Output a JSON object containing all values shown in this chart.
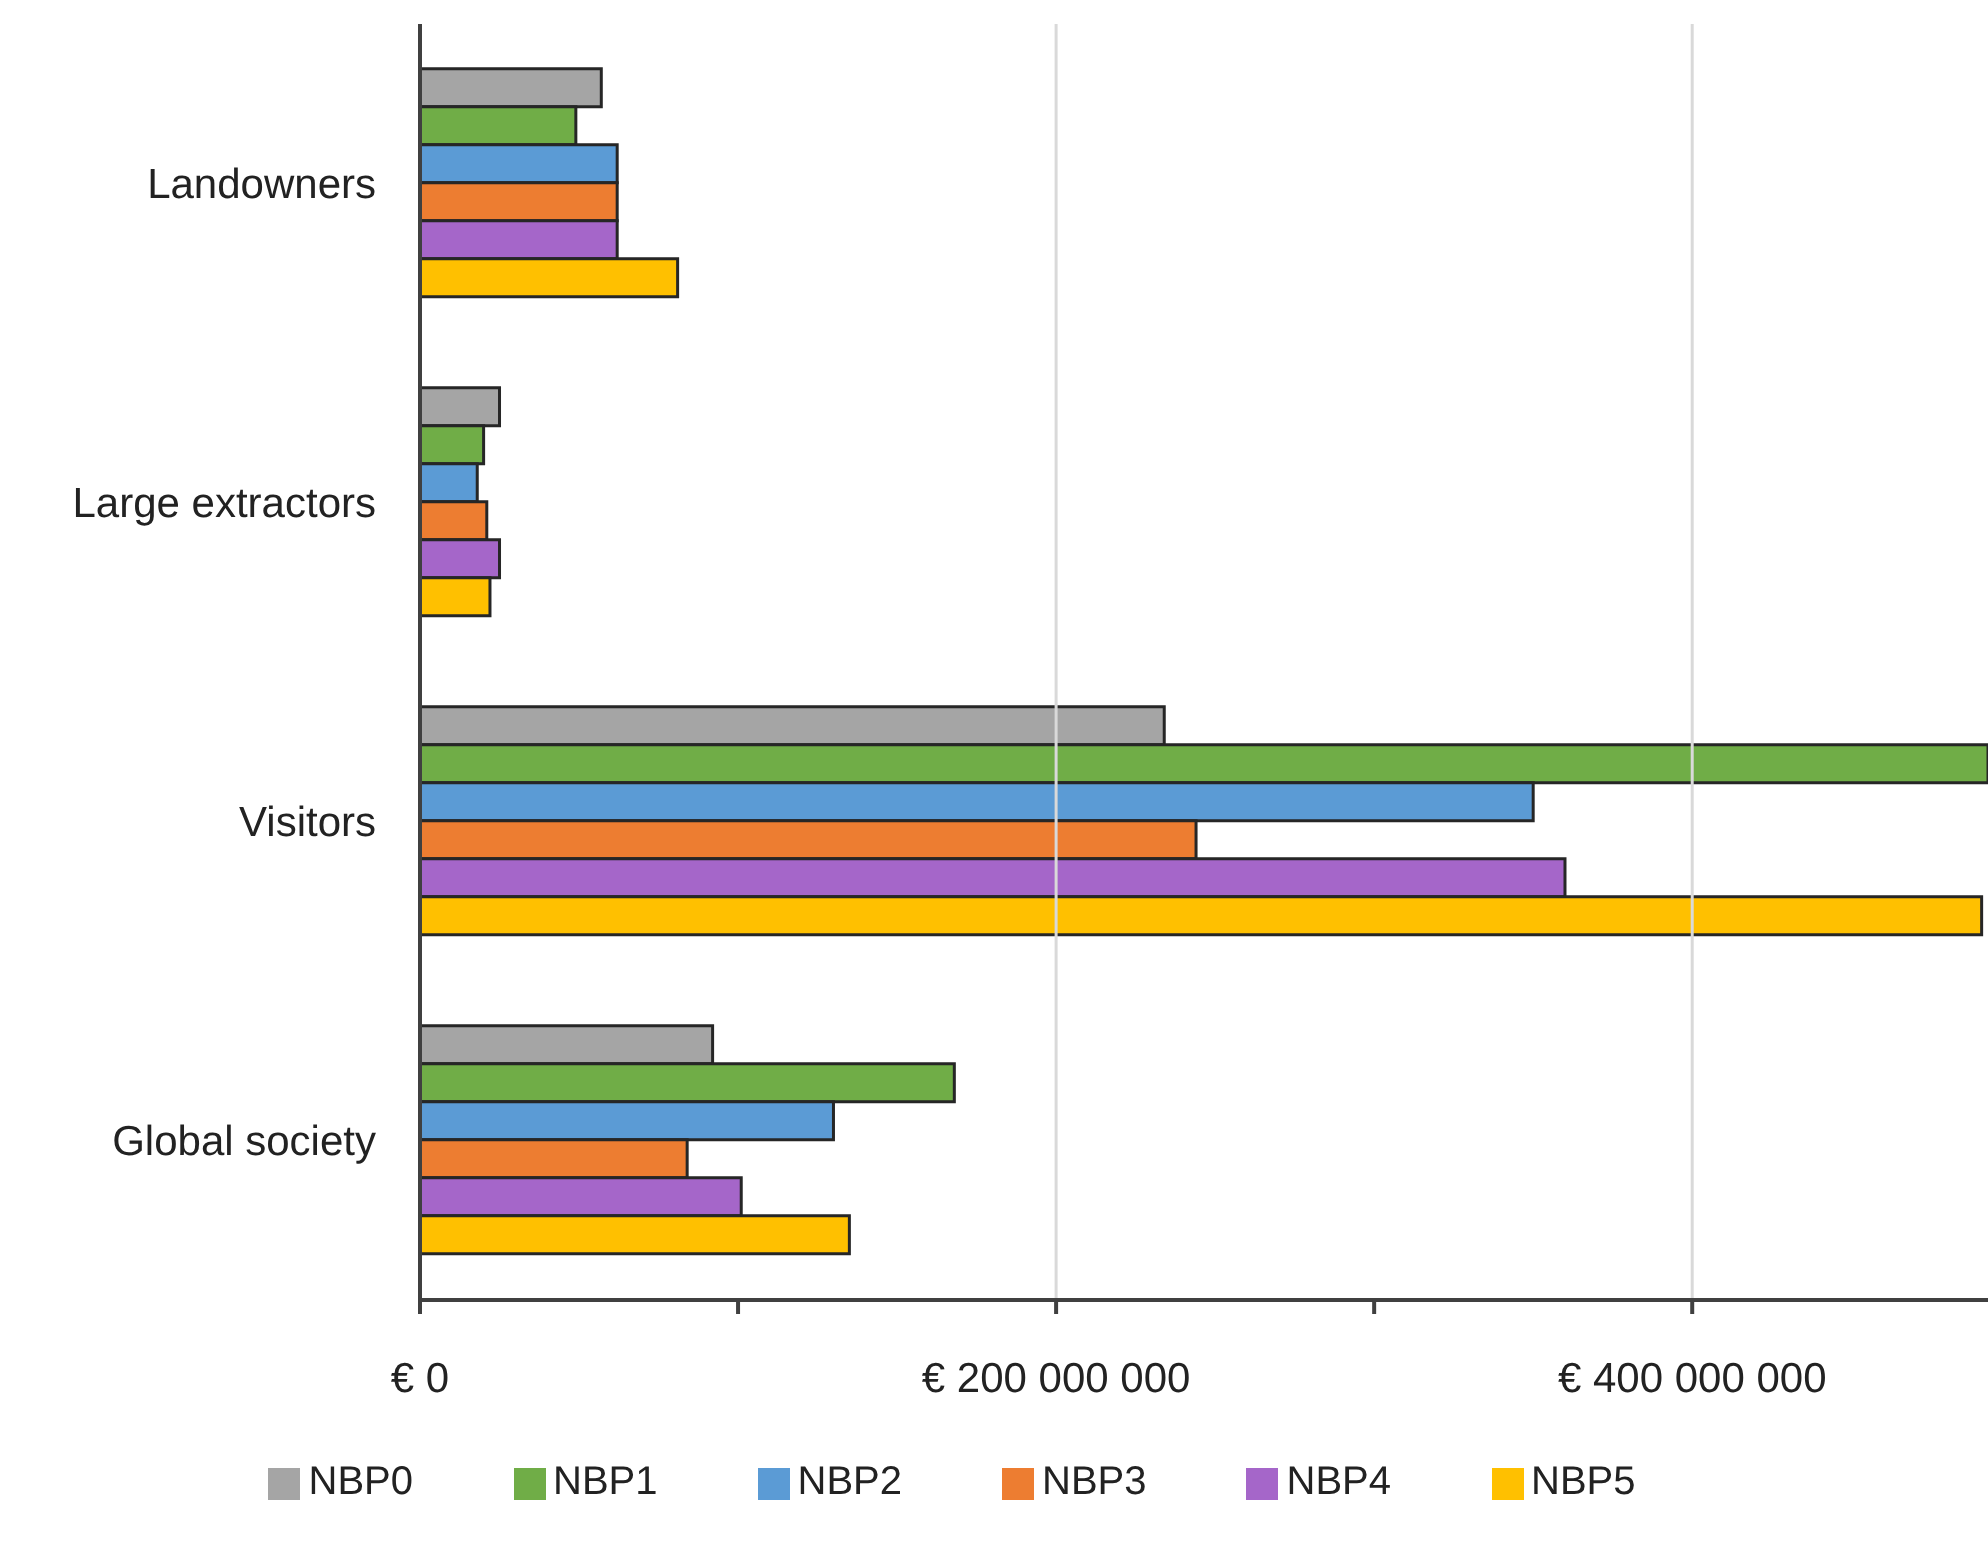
{
  "chart_data": {
    "type": "bar",
    "orientation": "horizontal",
    "categories": [
      "Landowners",
      "Large extractors",
      "Visitors",
      "Global society"
    ],
    "series": [
      {
        "name": "NBP0",
        "color": "#a5a5a5",
        "values": [
          57000000,
          25000000,
          234000000,
          92000000
        ]
      },
      {
        "name": "NBP1",
        "color": "#70ad47",
        "values": [
          49000000,
          20000000,
          493000000,
          168000000
        ]
      },
      {
        "name": "NBP2",
        "color": "#5b9bd5",
        "values": [
          62000000,
          18000000,
          350000000,
          130000000
        ]
      },
      {
        "name": "NBP3",
        "color": "#ed7d31",
        "values": [
          62000000,
          21000000,
          244000000,
          84000000
        ]
      },
      {
        "name": "NBP4",
        "color": "#a566c9",
        "values": [
          62000000,
          25000000,
          360000000,
          101000000
        ]
      },
      {
        "name": "NBP5",
        "color": "#ffc000",
        "values": [
          81000000,
          22000000,
          491000000,
          135000000
        ]
      }
    ],
    "xlim": [
      0,
      493000000
    ],
    "xticks": [
      {
        "value": 0,
        "label": "€ 0"
      },
      {
        "value": 100000000,
        "label": null
      },
      {
        "value": 200000000,
        "label": "€ 200 000 000"
      },
      {
        "value": 300000000,
        "label": null
      },
      {
        "value": 400000000,
        "label": "€ 400 000 000"
      }
    ],
    "grid": "x",
    "legend": "bottom"
  }
}
